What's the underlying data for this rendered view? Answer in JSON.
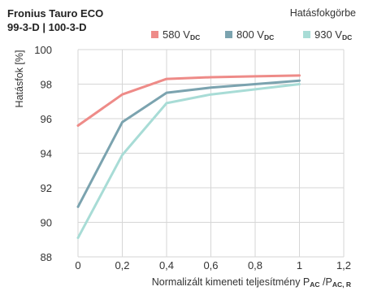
{
  "chart_data": {
    "type": "line",
    "title_line1": "Fronius Tauro ECO",
    "title_line2": "99-3-D | 100-3-D",
    "subtitle": "Hatásfokgörbe",
    "ylabel": "Hatásfok [%]",
    "xlabel_main": "Normalizált kimeneti teljesítmény P",
    "xlabel_sub1": "AC",
    "xlabel_sep": " /P",
    "xlabel_sub2": "AC, R",
    "xlim": [
      0,
      1.2
    ],
    "ylim": [
      88,
      100
    ],
    "x_ticks": [
      "0",
      "0,2",
      "0,4",
      "0,6",
      "0,8",
      "1",
      "1,2"
    ],
    "y_ticks": [
      "88",
      "90",
      "92",
      "94",
      "96",
      "98",
      "100"
    ],
    "grid": true,
    "legend_position": "top-right",
    "x": [
      0,
      0.2,
      0.4,
      0.6,
      0.8,
      1.0
    ],
    "series": [
      {
        "name": "580 V",
        "name_sub": "DC",
        "color": "#ee8b88",
        "values": [
          95.6,
          97.4,
          98.3,
          98.4,
          98.45,
          98.5
        ]
      },
      {
        "name": "800 V",
        "name_sub": "DC",
        "color": "#7ba3af",
        "values": [
          90.9,
          95.8,
          97.5,
          97.8,
          98.0,
          98.2
        ]
      },
      {
        "name": "930 V",
        "name_sub": "DC",
        "color": "#a8dcd6",
        "values": [
          89.1,
          93.9,
          96.9,
          97.4,
          97.7,
          98.0
        ]
      }
    ]
  }
}
